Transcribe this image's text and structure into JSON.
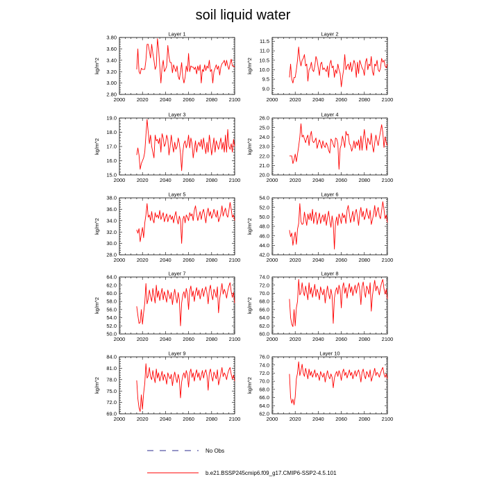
{
  "title": "soil liquid water",
  "legend": {
    "obs_label": "No Obs",
    "model_label": "b.e21.BSSP245cmip6.f09_g17.CMIP6-SSP2-4.5.101",
    "obs_color": "#2b2b8f",
    "model_color": "#ff0000"
  },
  "chart_data": [
    {
      "type": "line",
      "title": "Layer 1",
      "ylabel": "kg/m^2",
      "xlim": [
        2000,
        2100
      ],
      "ylim": [
        2.8,
        3.8
      ],
      "xticks": [
        2000,
        2020,
        2040,
        2060,
        2080,
        2100
      ],
      "yticks": [
        2.8,
        3.0,
        3.2,
        3.4,
        3.6,
        3.8
      ],
      "ytick_labels": [
        "2.80",
        "3.00",
        "3.20",
        "3.40",
        "3.60",
        "3.80"
      ],
      "x_start": 2015,
      "values": [
        3.24,
        3.6,
        3.2,
        3.16,
        3.26,
        3.24,
        3.24,
        3.24,
        3.4,
        3.68,
        3.68,
        3.56,
        3.44,
        3.68,
        3.52,
        3.4,
        3.24,
        3.3,
        3.78,
        3.6,
        3.3,
        3.0,
        3.28,
        3.4,
        3.2,
        3.24,
        3.3,
        3.66,
        3.46,
        3.36,
        3.36,
        3.18,
        3.32,
        3.26,
        3.2,
        3.3,
        3.12,
        3.06,
        3.2,
        3.36,
        3.1,
        3.0,
        3.1,
        3.3,
        3.2,
        3.52,
        3.2,
        3.3,
        3.28,
        3.28,
        3.24,
        3.28,
        3.16,
        3.3,
        3.22,
        3.32,
        3.0,
        3.24,
        3.2,
        3.32,
        3.22,
        3.3,
        3.26,
        3.4,
        3.2,
        3.24,
        3.0,
        3.2,
        3.26,
        3.32,
        3.24,
        3.3,
        3.14,
        3.28,
        3.34,
        3.36,
        3.4,
        3.3,
        3.4,
        3.3,
        3.24,
        3.34,
        3.42,
        3.3,
        3.3,
        3.28
      ]
    },
    {
      "type": "line",
      "title": "Layer 2",
      "ylabel": "kg/m^2",
      "xlim": [
        2000,
        2100
      ],
      "ylim": [
        8.7,
        11.7
      ],
      "xticks": [
        2000,
        2020,
        2040,
        2060,
        2080,
        2100
      ],
      "yticks": [
        9.0,
        9.5,
        10.0,
        10.5,
        11.0,
        11.5
      ],
      "ytick_labels": [
        "9.0",
        "9.5",
        "10.0",
        "10.5",
        "11.0",
        "11.5"
      ],
      "x_start": 2015,
      "values": [
        9.6,
        10.3,
        9.5,
        9.3,
        9.6,
        9.6,
        10.0,
        10.5,
        11.2,
        10.5,
        10.2,
        10.5,
        10.6,
        10.8,
        10.2,
        10.3,
        9.4,
        10.0,
        10.1,
        10.4,
        10.0,
        9.9,
        10.2,
        10.7,
        10.5,
        10.1,
        9.7,
        10.3,
        10.4,
        10.0,
        10.1,
        10.0,
        9.9,
        10.2,
        9.6,
        10.3,
        10.5,
        10.1,
        10.2,
        9.6,
        10.0,
        9.8,
        10.3,
        10.0,
        9.8,
        9.1,
        9.6,
        10.0,
        10.8,
        10.0,
        10.2,
        10.3,
        10.0,
        10.4,
        9.9,
        10.2,
        10.5,
        10.3,
        9.6,
        10.4,
        9.8,
        10.5,
        10.3,
        10.1,
        10.0,
        9.7,
        10.4,
        10.6,
        10.0,
        10.3,
        10.2,
        10.7,
        9.9,
        9.7,
        10.3,
        10.2,
        10.5,
        10.0,
        9.9,
        10.1,
        10.6,
        10.4,
        10.5,
        10.2,
        10.1,
        10.3
      ]
    },
    {
      "type": "line",
      "title": "Layer 3",
      "ylabel": "kg/m^2",
      "xlim": [
        2000,
        2100
      ],
      "ylim": [
        15.0,
        19.0
      ],
      "xticks": [
        2000,
        2020,
        2040,
        2060,
        2080,
        2100
      ],
      "yticks": [
        15.0,
        16.0,
        17.0,
        18.0,
        19.0
      ],
      "ytick_labels": [
        "15.0",
        "16.0",
        "17.0",
        "18.0",
        "19.0"
      ],
      "x_start": 2015,
      "values": [
        16.4,
        16.9,
        16.4,
        15.4,
        15.8,
        16.0,
        16.2,
        16.6,
        17.8,
        18.9,
        18.0,
        17.2,
        17.8,
        17.0,
        16.6,
        16.2,
        17.8,
        17.4,
        17.5,
        17.2,
        17.6,
        16.6,
        17.9,
        17.6,
        17.0,
        17.2,
        17.8,
        17.5,
        16.4,
        17.0,
        17.8,
        17.1,
        16.6,
        17.3,
        16.8,
        17.0,
        17.6,
        17.2,
        16.5,
        15.3,
        16.6,
        17.2,
        17.4,
        16.9,
        17.2,
        17.8,
        16.9,
        17.6,
        17.2,
        16.2,
        16.8,
        17.4,
        16.6,
        17.1,
        17.3,
        17.0,
        17.5,
        16.8,
        17.6,
        17.0,
        16.5,
        17.3,
        16.6,
        17.8,
        17.2,
        16.4,
        17.0,
        17.6,
        16.6,
        17.4,
        17.1,
        16.8,
        17.2,
        17.6,
        16.8,
        17.3,
        16.6,
        17.8,
        16.6,
        18.2,
        17.0,
        16.8,
        17.2,
        16.6,
        17.5,
        17.0
      ]
    },
    {
      "type": "line",
      "title": "Layer 4",
      "ylabel": "kg/m^2",
      "xlim": [
        2000,
        2100
      ],
      "ylim": [
        20.0,
        26.0
      ],
      "xticks": [
        2000,
        2020,
        2040,
        2060,
        2080,
        2100
      ],
      "yticks": [
        20.0,
        21.0,
        22.0,
        23.0,
        24.0,
        25.0,
        26.0
      ],
      "ytick_labels": [
        "20.0",
        "21.0",
        "22.0",
        "23.0",
        "24.0",
        "25.0",
        "26.0"
      ],
      "x_start": 2015,
      "values": [
        22.0,
        22.0,
        22.0,
        21.2,
        21.6,
        22.2,
        21.4,
        22.2,
        23.0,
        24.0,
        25.4,
        24.0,
        24.2,
        23.8,
        23.4,
        23.9,
        24.2,
        23.1,
        24.1,
        24.6,
        23.6,
        23.4,
        23.6,
        23.9,
        22.8,
        23.3,
        23.7,
        23.3,
        22.8,
        23.6,
        23.1,
        22.9,
        23.4,
        23.1,
        22.6,
        22.3,
        23.8,
        23.6,
        23.2,
        22.9,
        23.9,
        23.8,
        23.3,
        20.6,
        22.8,
        23.2,
        24.1,
        23.6,
        22.9,
        24.6,
        24.2,
        24.3,
        23.3,
        23.1,
        22.5,
        22.9,
        23.6,
        22.8,
        23.5,
        23.1,
        23.7,
        22.6,
        24.1,
        22.6,
        23.8,
        24.8,
        23.6,
        22.6,
        23.9,
        23.5,
        23.2,
        24.4,
        23.1,
        22.4,
        23.4,
        24.2,
        23.6,
        23.1,
        23.9,
        24.6,
        25.3,
        24.5,
        22.9,
        24.0,
        23.4,
        23.1
      ]
    },
    {
      "type": "line",
      "title": "Layer 5",
      "ylabel": "kg/m^2",
      "xlim": [
        2000,
        2100
      ],
      "ylim": [
        28.0,
        38.0
      ],
      "xticks": [
        2000,
        2020,
        2040,
        2060,
        2080,
        2100
      ],
      "yticks": [
        28.0,
        30.0,
        32.0,
        34.0,
        36.0,
        38.0
      ],
      "ytick_labels": [
        "28.0",
        "30.0",
        "32.0",
        "34.0",
        "36.0",
        "38.0"
      ],
      "x_start": 2015,
      "values": [
        32.4,
        31.8,
        32.6,
        30.3,
        31.6,
        32.8,
        31.0,
        33.6,
        35.0,
        37.0,
        34.6,
        35.0,
        34.0,
        35.6,
        34.2,
        33.6,
        35.4,
        34.6,
        35.0,
        34.4,
        35.8,
        34.2,
        34.8,
        35.4,
        33.8,
        34.6,
        35.2,
        33.8,
        34.6,
        35.0,
        34.2,
        34.8,
        33.6,
        34.8,
        35.6,
        34.2,
        33.4,
        34.8,
        34.0,
        30.0,
        34.2,
        34.8,
        33.6,
        35.0,
        34.6,
        34.0,
        35.4,
        34.8,
        35.2,
        34.0,
        35.8,
        36.6,
        35.2,
        34.0,
        34.8,
        35.6,
        34.2,
        35.4,
        36.0,
        34.8,
        33.6,
        35.4,
        36.2,
        34.8,
        35.6,
        34.4,
        35.0,
        36.0,
        35.2,
        34.6,
        35.8,
        33.8,
        34.4,
        35.2,
        36.6,
        34.8,
        35.6,
        36.2,
        35.0,
        34.6,
        35.8,
        37.2,
        36.0,
        34.6,
        35.0,
        34.0
      ]
    },
    {
      "type": "line",
      "title": "Layer 6",
      "ylabel": "kg/m^2",
      "xlim": [
        2000,
        2100
      ],
      "ylim": [
        42.0,
        54.0
      ],
      "xticks": [
        2000,
        2020,
        2040,
        2060,
        2080,
        2100
      ],
      "yticks": [
        42.0,
        44.0,
        46.0,
        48.0,
        50.0,
        52.0,
        54.0
      ],
      "ytick_labels": [
        "42.0",
        "44.0",
        "46.0",
        "48.0",
        "50.0",
        "52.0",
        "54.0"
      ],
      "x_start": 2015,
      "values": [
        47.2,
        45.8,
        46.6,
        44.0,
        45.6,
        46.8,
        44.2,
        47.4,
        48.6,
        52.8,
        49.0,
        48.4,
        48.6,
        51.0,
        49.6,
        48.2,
        50.6,
        49.4,
        50.8,
        49.2,
        51.6,
        48.6,
        50.2,
        51.0,
        48.4,
        49.6,
        50.8,
        48.6,
        49.8,
        50.4,
        49.0,
        50.6,
        48.2,
        49.8,
        51.2,
        49.2,
        47.8,
        50.2,
        48.6,
        43.2,
        48.8,
        50.0,
        48.2,
        50.6,
        49.8,
        48.6,
        50.8,
        49.8,
        50.4,
        48.6,
        51.4,
        52.4,
        50.6,
        48.8,
        50.0,
        51.2,
        49.0,
        50.8,
        51.6,
        50.0,
        48.2,
        50.8,
        52.0,
        50.0,
        51.2,
        49.4,
        50.2,
        51.8,
        50.4,
        49.6,
        51.4,
        48.4,
        49.4,
        50.6,
        52.4,
        50.0,
        51.2,
        52.0,
        50.2,
        49.6,
        51.4,
        53.2,
        51.6,
        49.6,
        50.4,
        48.8
      ]
    },
    {
      "type": "line",
      "title": "Layer 7",
      "ylabel": "kg/m^2",
      "xlim": [
        2000,
        2100
      ],
      "ylim": [
        50.0,
        64.0
      ],
      "xticks": [
        2000,
        2020,
        2040,
        2060,
        2080,
        2100
      ],
      "yticks": [
        50.0,
        52.0,
        54.0,
        56.0,
        58.0,
        60.0,
        62.0,
        64.0
      ],
      "ytick_labels": [
        "50.0",
        "52.0",
        "54.0",
        "56.0",
        "58.0",
        "60.0",
        "62.0",
        "64.0"
      ],
      "x_start": 2015,
      "values": [
        56.8,
        54.6,
        52.6,
        52.8,
        56.0,
        52.4,
        55.2,
        57.6,
        62.4,
        57.4,
        58.6,
        60.8,
        59.2,
        58.0,
        61.2,
        59.4,
        57.6,
        62.0,
        59.0,
        60.6,
        58.2,
        59.8,
        61.2,
        58.4,
        60.4,
        59.2,
        57.8,
        60.8,
        59.6,
        58.6,
        60.2,
        57.2,
        59.4,
        61.0,
        59.0,
        57.6,
        60.2,
        58.4,
        52.0,
        57.6,
        59.6,
        60.4,
        58.8,
        61.2,
        59.8,
        56.0,
        60.6,
        61.8,
        59.2,
        60.6,
        58.0,
        60.2,
        61.4,
        59.4,
        60.8,
        58.6,
        60.0,
        61.2,
        59.2,
        60.6,
        61.6,
        60.0,
        57.4,
        60.8,
        62.0,
        59.6,
        58.4,
        61.0,
        60.2,
        59.0,
        61.6,
        55.2,
        58.6,
        60.6,
        62.4,
        59.8,
        61.0,
        60.2,
        58.8,
        60.6,
        61.8,
        62.6,
        60.4,
        59.0,
        60.2,
        57.6
      ]
    },
    {
      "type": "line",
      "title": "Layer 8",
      "ylabel": "kg/m^2",
      "xlim": [
        2000,
        2100
      ],
      "ylim": [
        60.0,
        74.0
      ],
      "xticks": [
        2000,
        2020,
        2040,
        2060,
        2080,
        2100
      ],
      "yticks": [
        60.0,
        62.0,
        64.0,
        66.0,
        68.0,
        70.0,
        72.0,
        74.0
      ],
      "ytick_labels": [
        "60.0",
        "62.0",
        "64.0",
        "66.0",
        "68.0",
        "70.0",
        "72.0",
        "74.0"
      ],
      "x_start": 2015,
      "values": [
        68.6,
        64.0,
        62.4,
        61.8,
        66.0,
        62.0,
        66.4,
        68.0,
        73.4,
        69.6,
        70.2,
        72.6,
        70.4,
        69.4,
        71.8,
        70.2,
        68.4,
        72.6,
        69.8,
        71.4,
        69.0,
        70.6,
        72.2,
        69.2,
        71.0,
        70.0,
        68.4,
        71.6,
        70.4,
        69.6,
        71.0,
        67.6,
        70.0,
        71.8,
        69.8,
        68.6,
        71.0,
        69.4,
        62.6,
        68.8,
        70.6,
        71.4,
        69.8,
        72.0,
        70.8,
        66.4,
        71.4,
        72.6,
        70.0,
        71.4,
        68.8,
        71.0,
        72.4,
        70.2,
        71.6,
        69.4,
        70.8,
        72.0,
        70.0,
        71.6,
        72.6,
        70.8,
        67.2,
        71.6,
        72.8,
        70.4,
        69.0,
        71.8,
        71.0,
        69.8,
        72.6,
        65.6,
        69.4,
        71.4,
        73.2,
        70.6,
        71.8,
        71.0,
        69.6,
        71.4,
        72.6,
        73.4,
        71.2,
        69.8,
        71.0,
        68.6
      ]
    },
    {
      "type": "line",
      "title": "Layer 9",
      "ylabel": "kg/m^2",
      "xlim": [
        2000,
        2100
      ],
      "ylim": [
        69.0,
        84.0
      ],
      "xticks": [
        2000,
        2020,
        2040,
        2060,
        2080,
        2100
      ],
      "yticks": [
        69.0,
        72.0,
        75.0,
        78.0,
        81.0,
        84.0
      ],
      "ytick_labels": [
        "69.0",
        "72.0",
        "75.0",
        "78.0",
        "81.0",
        "84.0"
      ],
      "x_start": 2015,
      "values": [
        77.8,
        73.0,
        70.6,
        69.6,
        74.0,
        70.2,
        74.4,
        77.0,
        82.2,
        78.4,
        79.0,
        81.2,
        78.8,
        78.0,
        80.4,
        78.6,
        77.2,
        80.8,
        78.4,
        79.8,
        77.6,
        78.8,
        80.2,
        77.8,
        79.4,
        78.6,
        76.8,
        79.8,
        78.8,
        78.2,
        79.4,
        76.4,
        78.6,
        80.0,
        78.4,
        77.2,
        79.4,
        78.0,
        73.2,
        77.4,
        79.0,
        79.8,
        78.4,
        80.4,
        79.2,
        76.0,
        79.8,
        80.8,
        78.6,
        79.8,
        77.6,
        79.4,
        80.6,
        78.6,
        79.8,
        77.8,
        79.0,
        80.4,
        78.4,
        79.8,
        80.6,
        79.0,
        75.2,
        79.8,
        80.8,
        78.8,
        77.6,
        80.0,
        79.2,
        78.2,
        80.6,
        76.6,
        78.0,
        79.6,
        81.2,
        78.8,
        79.8,
        79.2,
        78.0,
        79.6,
        80.6,
        81.2,
        79.4,
        78.2,
        79.2,
        77.6
      ]
    },
    {
      "type": "line",
      "title": "Layer 10",
      "ylabel": "kg/m^2",
      "xlim": [
        2000,
        2100
      ],
      "ylim": [
        62.0,
        76.0
      ],
      "xticks": [
        2000,
        2020,
        2040,
        2060,
        2080,
        2100
      ],
      "yticks": [
        62.0,
        64.0,
        66.0,
        68.0,
        70.0,
        72.0,
        74.0,
        76.0
      ],
      "ytick_labels": [
        "62.0",
        "64.0",
        "66.0",
        "68.0",
        "70.0",
        "72.0",
        "74.0",
        "76.0"
      ],
      "x_start": 2015,
      "values": [
        71.8,
        66.0,
        64.6,
        65.6,
        64.2,
        66.2,
        70.6,
        72.0,
        74.8,
        71.4,
        72.6,
        74.2,
        72.0,
        71.2,
        73.2,
        72.0,
        70.6,
        73.0,
        71.4,
        72.4,
        71.0,
        71.8,
        72.8,
        71.0,
        72.0,
        71.4,
        70.2,
        72.4,
        71.6,
        71.0,
        72.0,
        69.8,
        71.4,
        72.6,
        71.2,
        70.6,
        71.8,
        71.0,
        68.4,
        70.8,
        71.8,
        72.4,
        71.2,
        72.6,
        71.8,
        70.2,
        72.2,
        73.0,
        71.4,
        72.2,
        70.8,
        71.8,
        72.8,
        71.4,
        72.2,
        70.6,
        71.6,
        72.6,
        71.2,
        72.2,
        72.8,
        71.6,
        69.8,
        72.2,
        73.0,
        71.4,
        70.6,
        72.4,
        71.8,
        71.0,
        72.8,
        70.0,
        71.0,
        72.0,
        73.2,
        71.4,
        72.2,
        71.8,
        71.0,
        72.0,
        72.8,
        73.4,
        71.8,
        71.0,
        71.8,
        70.6
      ]
    }
  ]
}
